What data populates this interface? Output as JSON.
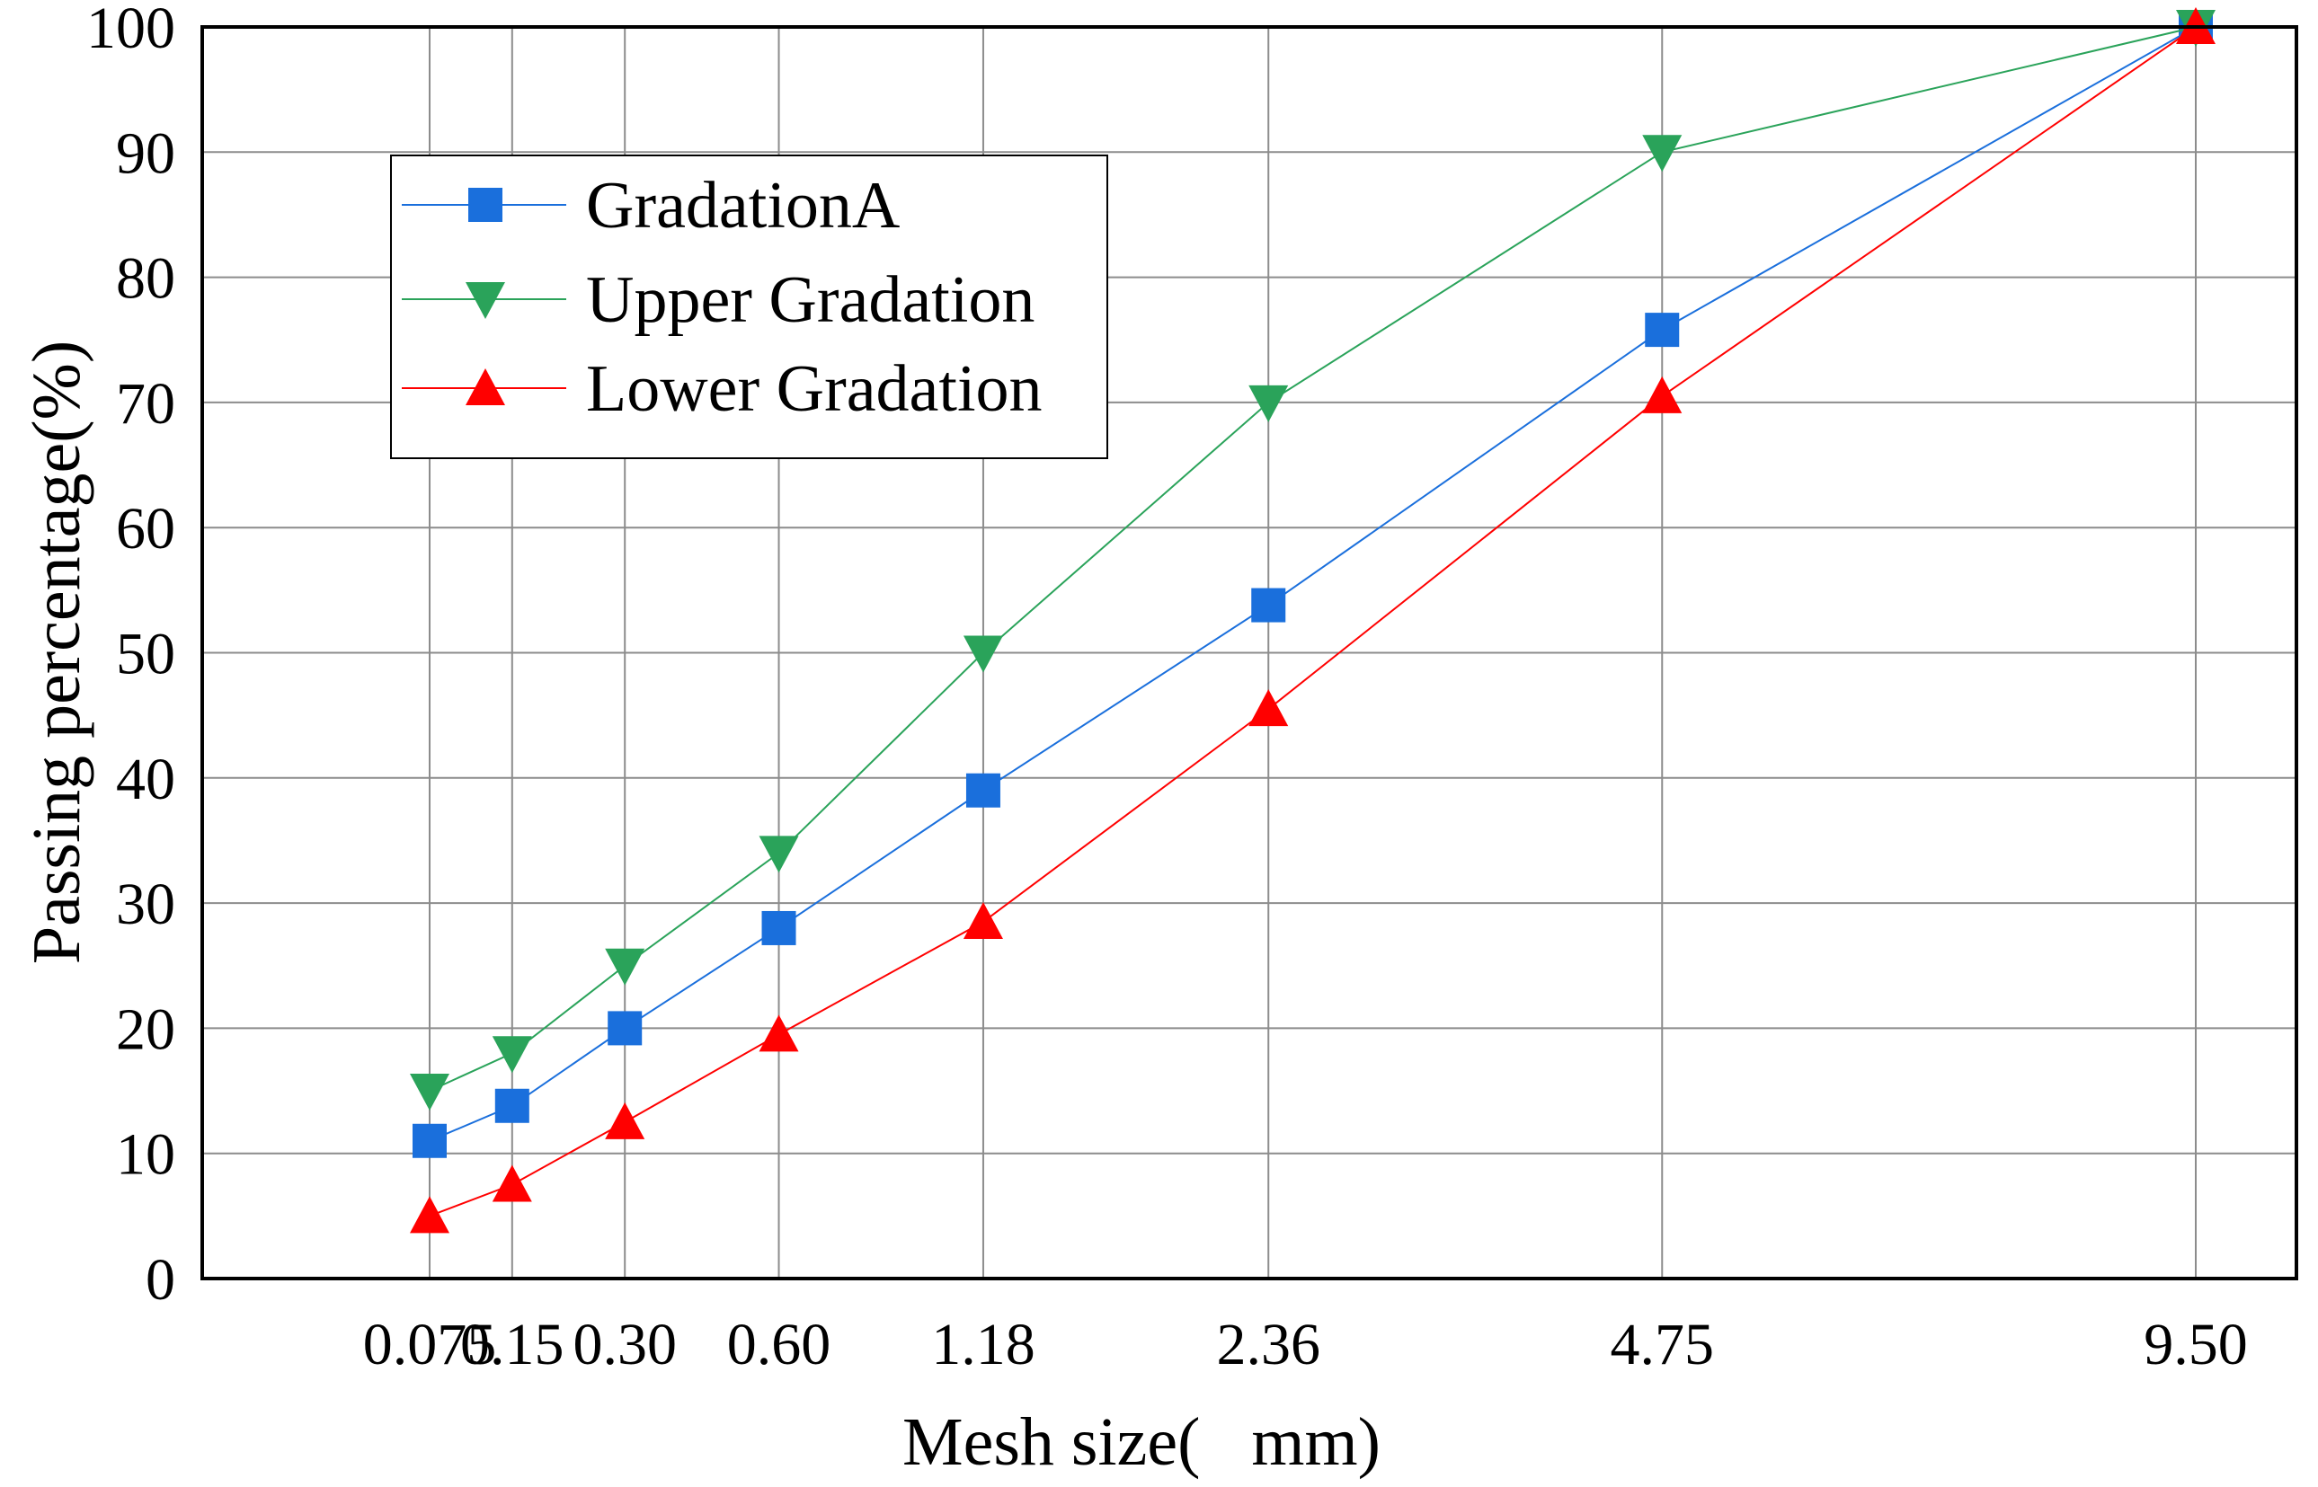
{
  "chart_data": {
    "type": "line",
    "title": "",
    "xlabel": "Mesh size(   mm)",
    "ylabel": "Passing percentage(%)",
    "ylim": [
      0,
      100
    ],
    "y_ticks": [
      "0",
      "10",
      "20",
      "30",
      "40",
      "50",
      "60",
      "70",
      "80",
      "90",
      "100"
    ],
    "x": [
      0.075,
      0.15,
      0.3,
      0.6,
      1.18,
      2.36,
      4.75,
      9.5
    ],
    "x_tick_labels": [
      "0.075",
      "0.15",
      "0.30",
      "0.60",
      "1.18",
      "2.36",
      "4.75",
      "9.50"
    ],
    "x_scale": "power-0.45",
    "grid": true,
    "legend_position": "upper-left",
    "series": [
      {
        "name": "GradationA",
        "color": "#1a6fdc",
        "marker": "square",
        "values": [
          11,
          13.8,
          20,
          28,
          39,
          53.8,
          75.8,
          100
        ]
      },
      {
        "name": "Upper Gradation",
        "color": "#2aa35a",
        "marker": "triangle-down",
        "values": [
          15,
          18,
          25,
          34,
          50,
          70,
          90,
          100
        ]
      },
      {
        "name": "Lower Gradation",
        "color": "#ff0000",
        "marker": "triangle-up",
        "values": [
          5,
          7.5,
          12.5,
          19.5,
          28.5,
          45.5,
          70.5,
          100
        ]
      }
    ]
  }
}
